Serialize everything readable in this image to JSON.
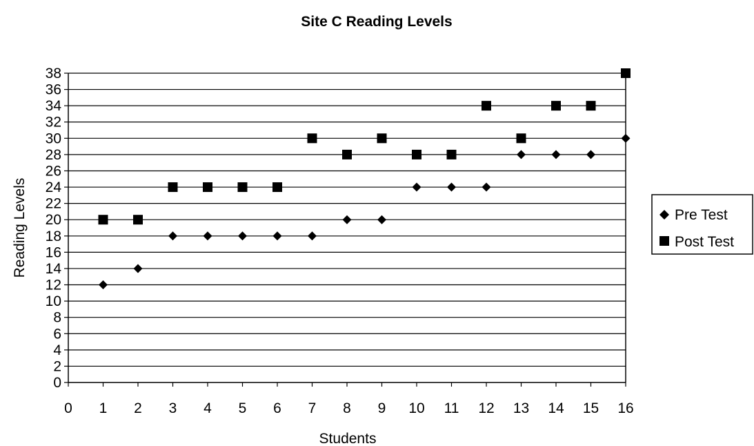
{
  "chart_data": {
    "type": "scatter",
    "title": "Site C Reading Levels",
    "xlabel": "Students",
    "ylabel": "Reading Levels",
    "xlim": [
      0,
      16
    ],
    "ylim": [
      0,
      38
    ],
    "x_ticks": [
      "0",
      "1",
      "2",
      "3",
      "4",
      "5",
      "6",
      "7",
      "8",
      "9",
      "10",
      "11",
      "12",
      "13",
      "14",
      "15",
      "16"
    ],
    "y_ticks": [
      "0",
      "2",
      "4",
      "6",
      "8",
      "10",
      "12",
      "14",
      "16",
      "18",
      "20",
      "22",
      "24",
      "26",
      "28",
      "30",
      "32",
      "34",
      "36",
      "38"
    ],
    "grid": "horizontal",
    "legend_position": "right",
    "series": [
      {
        "name": "Pre Test",
        "marker": "diamond",
        "color": "#000000",
        "x": [
          1,
          2,
          3,
          4,
          5,
          6,
          7,
          8,
          9,
          10,
          11,
          12,
          13,
          14,
          15,
          16
        ],
        "y": [
          12,
          14,
          18,
          18,
          18,
          18,
          18,
          20,
          20,
          24,
          24,
          24,
          28,
          28,
          28,
          30
        ]
      },
      {
        "name": "Post Test",
        "marker": "square",
        "color": "#000000",
        "x": [
          1,
          2,
          3,
          4,
          5,
          6,
          7,
          8,
          9,
          10,
          11,
          12,
          13,
          14,
          15,
          16
        ],
        "y": [
          20,
          20,
          24,
          24,
          24,
          24,
          30,
          28,
          30,
          28,
          28,
          34,
          30,
          34,
          34,
          38
        ]
      }
    ]
  }
}
